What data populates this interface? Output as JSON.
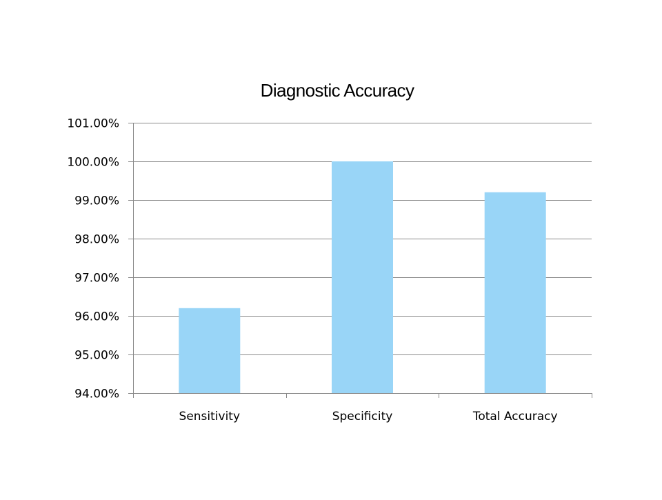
{
  "chart_data": {
    "type": "bar",
    "title": "Diagnostic Accuracy",
    "xlabel": "",
    "ylabel": "",
    "categories": [
      "Sensitivity",
      "Specificity",
      "Total Accuracy"
    ],
    "values": [
      96.2,
      100.0,
      99.2
    ],
    "ylim": [
      94,
      101
    ],
    "yticks": [
      "94.00%",
      "95.00%",
      "96.00%",
      "97.00%",
      "98.00%",
      "99.00%",
      "100.00%",
      "101.00%"
    ],
    "grid": true,
    "legend": "none",
    "bar_color": "#99d5f7",
    "grid_color": "#898989"
  }
}
